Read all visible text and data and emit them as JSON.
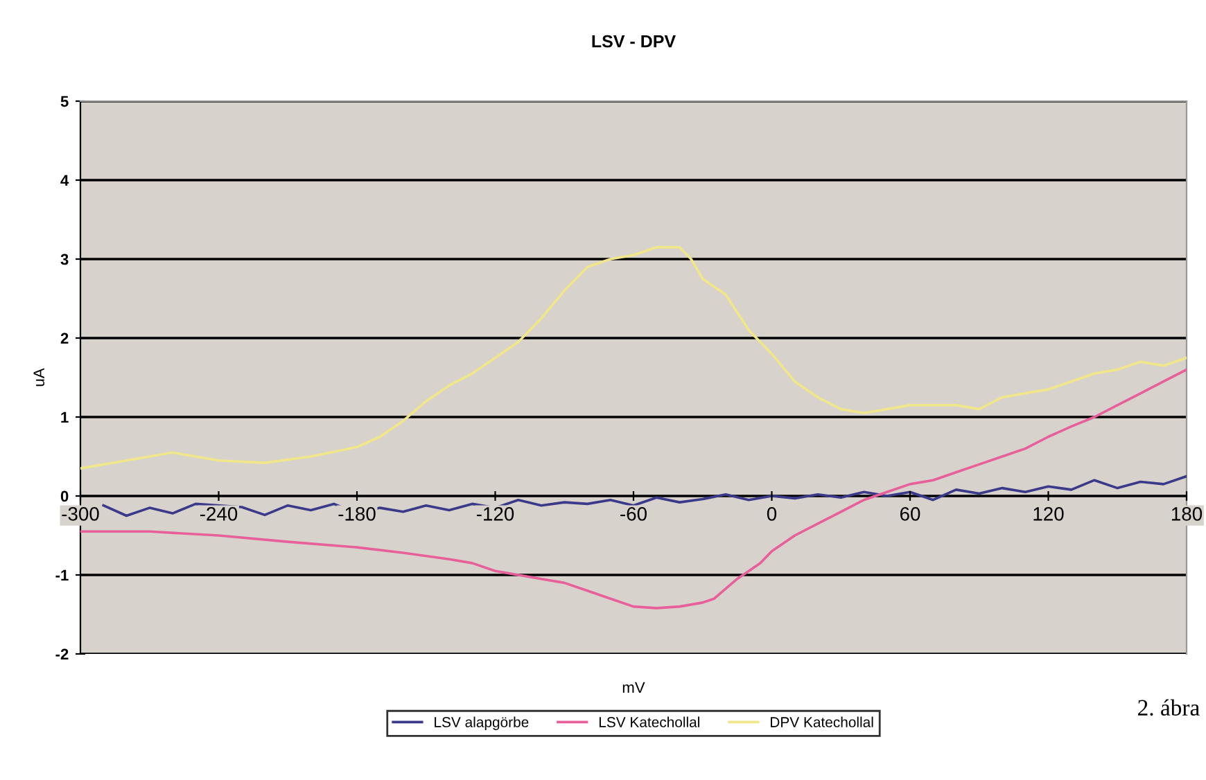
{
  "chart_data": {
    "type": "line",
    "title": "LSV - DPV",
    "xlabel": "mV",
    "ylabel": "uA",
    "xlim": [
      -300,
      180
    ],
    "xticks": [
      -300,
      -240,
      -180,
      -120,
      -60,
      0,
      60,
      120,
      180
    ],
    "ylim": [
      -2,
      5
    ],
    "yticks": [
      -2,
      -1,
      0,
      1,
      2,
      3,
      4,
      5
    ],
    "grid": "y",
    "legend": "bottom",
    "marker": "none",
    "line_style": "solid",
    "annotations": [
      "2. ábra"
    ],
    "series": [
      {
        "name": "LSV alapgörbe",
        "color": "#3b3a8a",
        "x": [
          -290,
          -280,
          -270,
          -260,
          -250,
          -230,
          -220,
          -210,
          -200,
          -190,
          -180,
          -170,
          -160,
          -150,
          -140,
          -130,
          -120,
          -110,
          -100,
          -90,
          -80,
          -70,
          -60,
          -50,
          -40,
          -30,
          -20,
          -10,
          0,
          10,
          20,
          30,
          40,
          50,
          60,
          70,
          80,
          90,
          100,
          110,
          120,
          130,
          140,
          150,
          160,
          170,
          180
        ],
        "values": [
          -0.12,
          -0.25,
          -0.15,
          -0.22,
          -0.1,
          -0.14,
          -0.24,
          -0.12,
          -0.18,
          -0.1,
          -0.22,
          -0.15,
          -0.2,
          -0.12,
          -0.18,
          -0.1,
          -0.15,
          -0.05,
          -0.12,
          -0.08,
          -0.1,
          -0.05,
          -0.12,
          -0.02,
          -0.08,
          -0.04,
          0.02,
          -0.05,
          0.0,
          -0.03,
          0.02,
          -0.02,
          0.05,
          0.0,
          0.05,
          -0.05,
          0.08,
          0.03,
          0.1,
          0.05,
          0.12,
          0.08,
          0.2,
          0.1,
          0.18,
          0.15,
          0.25
        ]
      },
      {
        "name": "LSV Katechollal",
        "color": "#e8609a",
        "x": [
          -300,
          -270,
          -240,
          -210,
          -180,
          -160,
          -140,
          -130,
          -120,
          -110,
          -100,
          -90,
          -80,
          -70,
          -60,
          -50,
          -40,
          -30,
          -25,
          -15,
          -5,
          0,
          10,
          20,
          30,
          40,
          50,
          60,
          70,
          80,
          90,
          100,
          110,
          120,
          130,
          140,
          150,
          160,
          170,
          180
        ],
        "values": [
          -0.45,
          -0.45,
          -0.5,
          -0.58,
          -0.65,
          -0.72,
          -0.8,
          -0.85,
          -0.95,
          -1.0,
          -1.05,
          -1.1,
          -1.2,
          -1.3,
          -1.4,
          -1.42,
          -1.4,
          -1.35,
          -1.3,
          -1.05,
          -0.85,
          -0.7,
          -0.5,
          -0.35,
          -0.2,
          -0.05,
          0.05,
          0.15,
          0.2,
          0.3,
          0.4,
          0.5,
          0.6,
          0.75,
          0.88,
          1.0,
          1.15,
          1.3,
          1.45,
          1.6
        ]
      },
      {
        "name": "DPV Katechollal",
        "color": "#f0e68a",
        "x": [
          -300,
          -280,
          -260,
          -240,
          -220,
          -200,
          -180,
          -170,
          -160,
          -150,
          -140,
          -130,
          -120,
          -110,
          -100,
          -90,
          -80,
          -70,
          -60,
          -50,
          -40,
          -35,
          -30,
          -20,
          -10,
          0,
          10,
          20,
          30,
          40,
          50,
          60,
          70,
          80,
          90,
          100,
          110,
          120,
          130,
          140,
          150,
          160,
          170,
          180
        ],
        "values": [
          0.35,
          0.45,
          0.55,
          0.45,
          0.42,
          0.5,
          0.62,
          0.75,
          0.95,
          1.2,
          1.4,
          1.55,
          1.75,
          1.95,
          2.25,
          2.6,
          2.9,
          3.0,
          3.05,
          3.15,
          3.15,
          3.0,
          2.75,
          2.55,
          2.1,
          1.8,
          1.45,
          1.25,
          1.1,
          1.05,
          1.1,
          1.15,
          1.15,
          1.15,
          1.1,
          1.25,
          1.3,
          1.35,
          1.45,
          1.55,
          1.6,
          1.7,
          1.65,
          1.75
        ]
      }
    ]
  }
}
